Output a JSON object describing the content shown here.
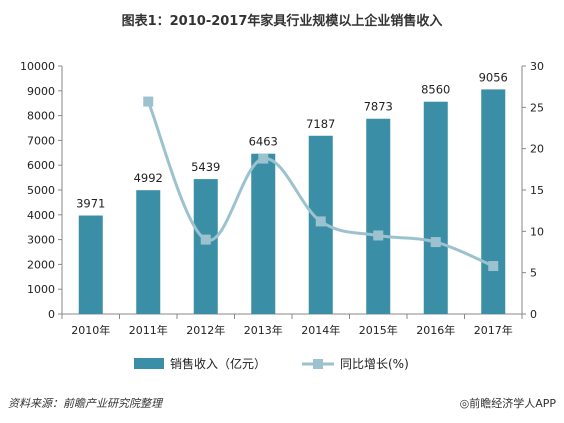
{
  "title": "图表1：2010-2017年家具行业规模以上企业销售收入",
  "chart_data": {
    "type": "bar",
    "categories": [
      "2010年",
      "2011年",
      "2012年",
      "2013年",
      "2014年",
      "2015年",
      "2016年",
      "2017年"
    ],
    "series": [
      {
        "name": "销售收入（亿元）",
        "type": "bar",
        "axis": "left",
        "values": [
          3971,
          4992,
          5439,
          6463,
          7187,
          7873,
          8560,
          9056
        ],
        "color": "#3a8ea6"
      },
      {
        "name": "同比增长(%)",
        "type": "line",
        "axis": "right",
        "values": [
          null,
          25.7,
          9.0,
          18.8,
          11.2,
          9.5,
          8.7,
          5.8
        ],
        "color": "#9cc2cf"
      }
    ],
    "ylim_left": [
      0,
      10000
    ],
    "yticks_left": [
      "0",
      "1000",
      "2000",
      "3000",
      "4000",
      "5000",
      "6000",
      "7000",
      "8000",
      "9000",
      "10000"
    ],
    "ylim_right": [
      0,
      30
    ],
    "yticks_right": [
      "0",
      "5",
      "10",
      "15",
      "20",
      "25",
      "30"
    ],
    "data_labels": [
      "3971",
      "4992",
      "5439",
      "6463",
      "7187",
      "7873",
      "8560",
      "9056"
    ],
    "grid": false,
    "legend_position": "bottom"
  },
  "footer": {
    "source": "资料来源：前瞻产业研究院整理",
    "brand": "◎前瞻经济学人APP"
  }
}
